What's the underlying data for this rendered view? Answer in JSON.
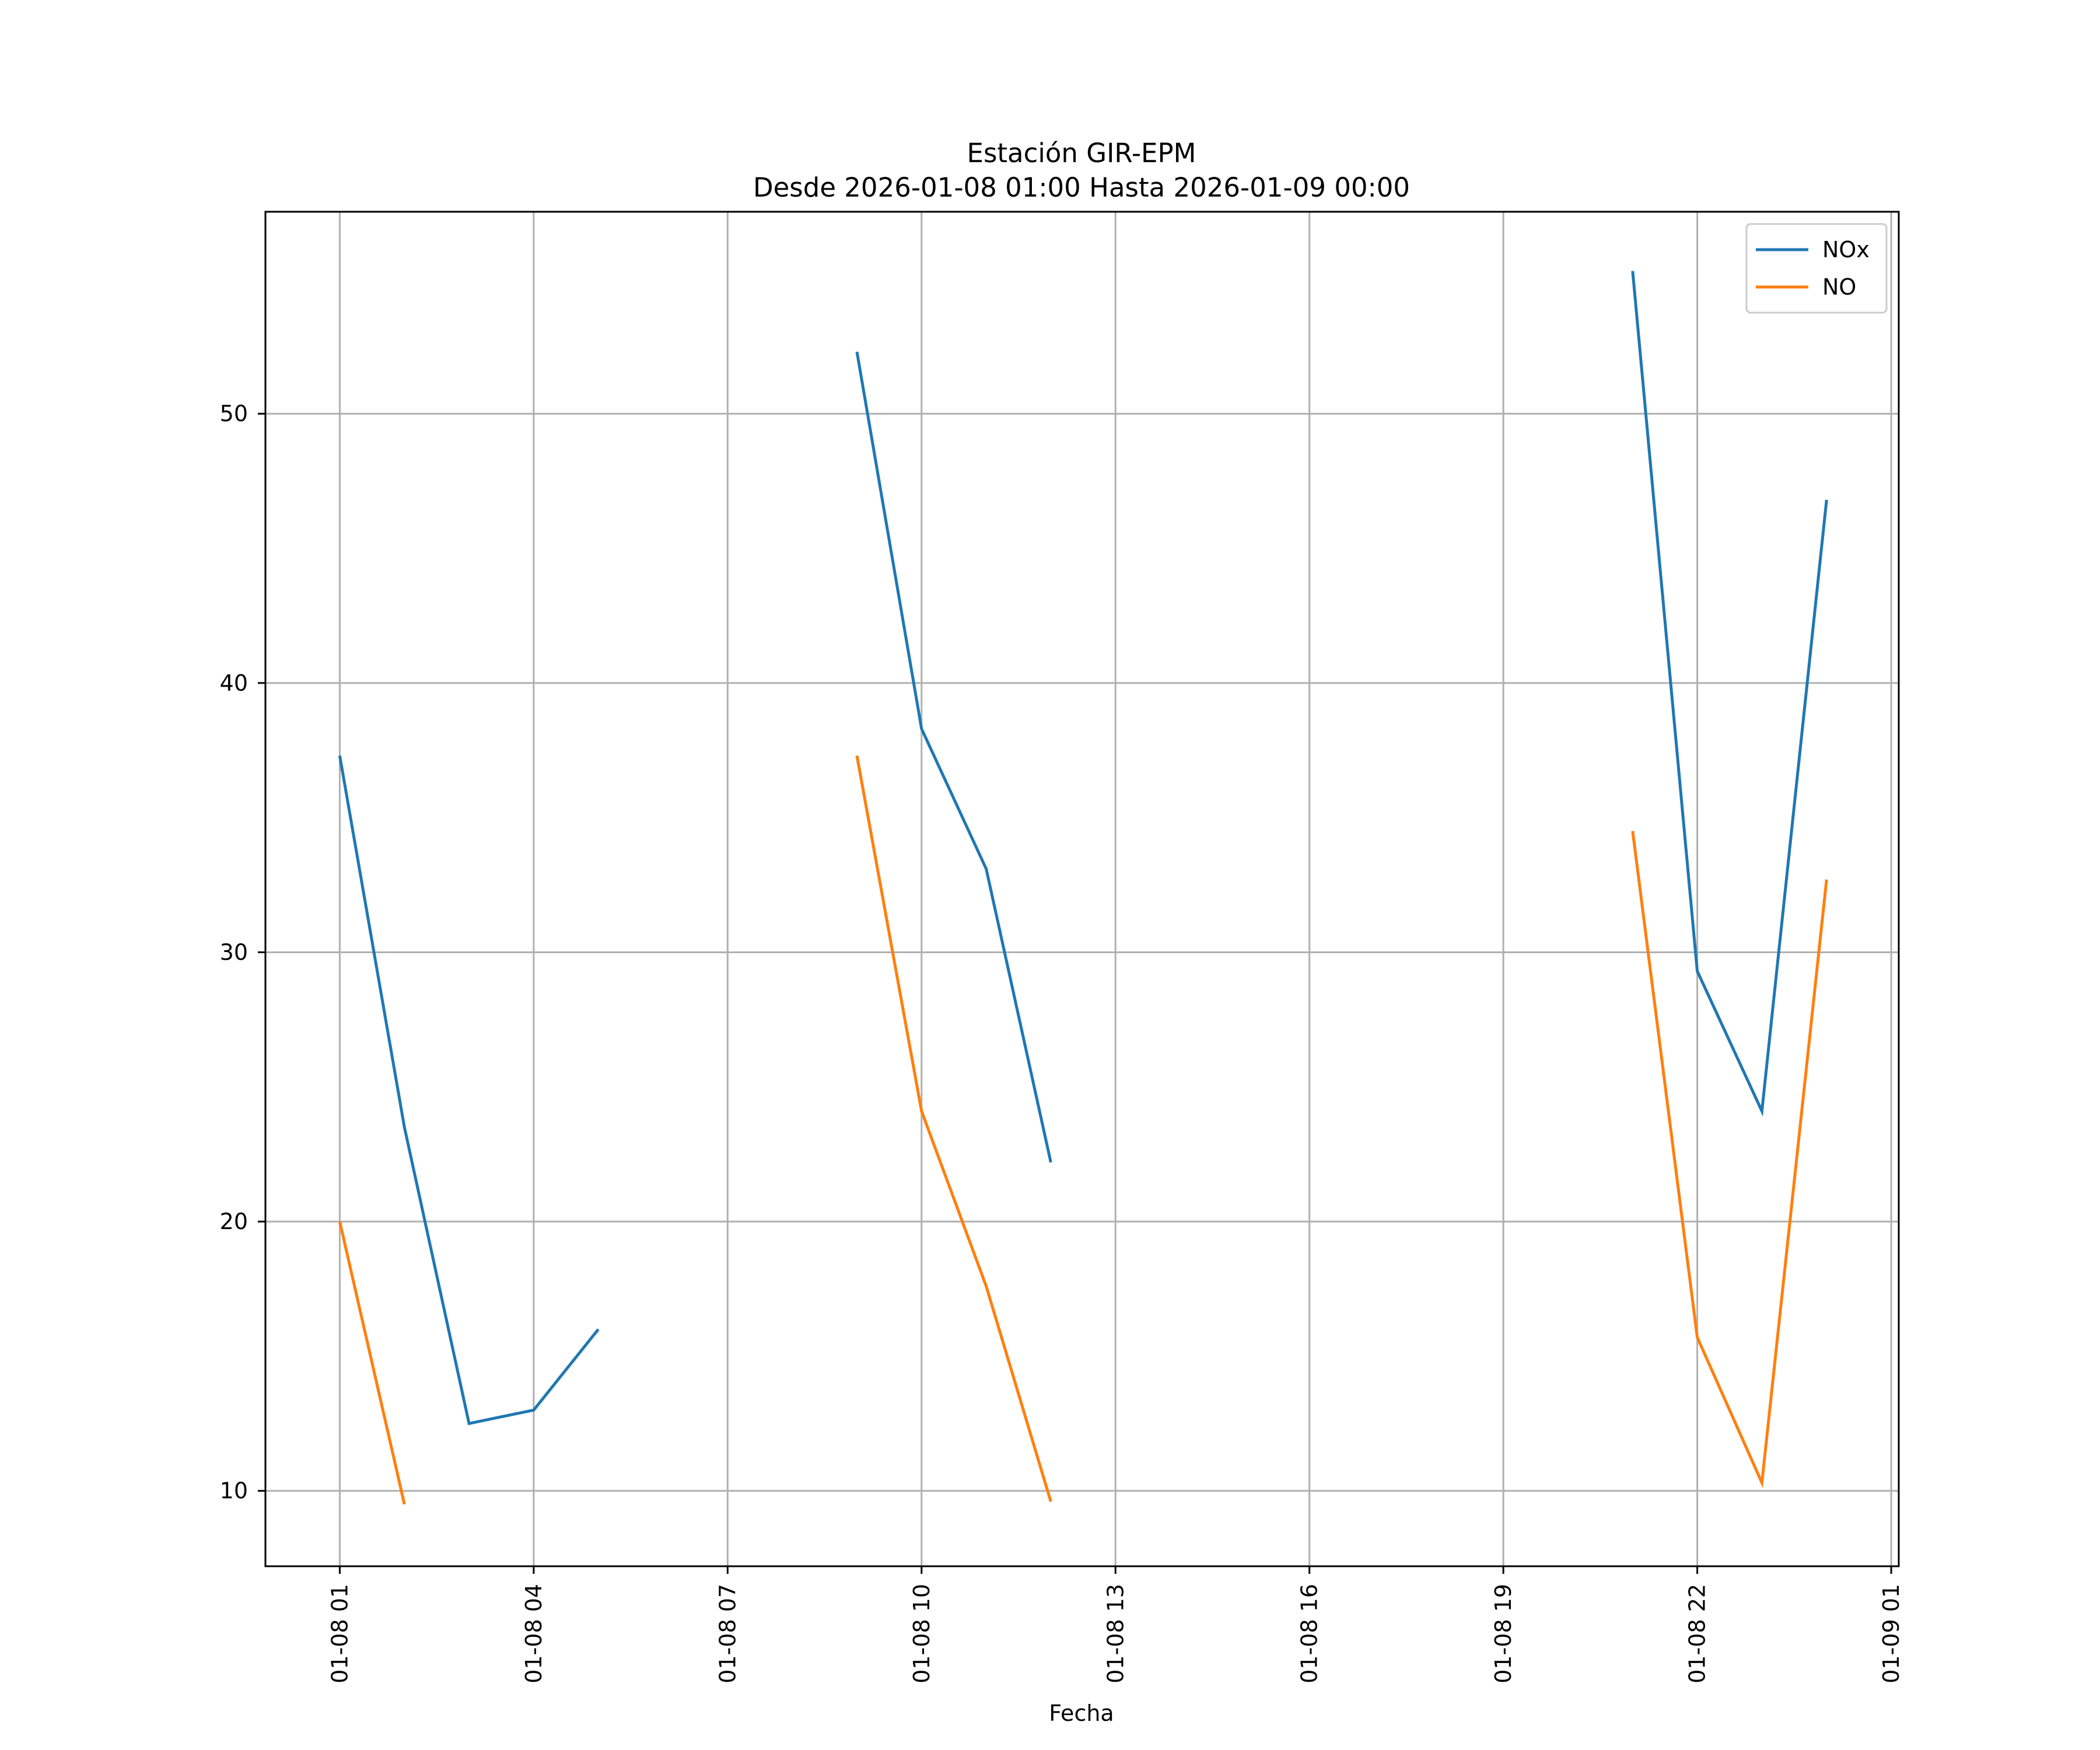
{
  "chart_data": {
    "type": "line",
    "title": "Estación GIR-EPM",
    "subtitle": "Desde 2026-01-08 01:00 Hasta 2026-01-09 00:00",
    "xlabel": "Fecha",
    "ylabel": "",
    "x": [
      "2026-01-08 01:00",
      "2026-01-08 02:00",
      "2026-01-08 03:00",
      "2026-01-08 04:00",
      "2026-01-08 05:00",
      "2026-01-08 06:00",
      "2026-01-08 07:00",
      "2026-01-08 08:00",
      "2026-01-08 09:00",
      "2026-01-08 10:00",
      "2026-01-08 11:00",
      "2026-01-08 12:00",
      "2026-01-08 13:00",
      "2026-01-08 14:00",
      "2026-01-08 15:00",
      "2026-01-08 16:00",
      "2026-01-08 17:00",
      "2026-01-08 18:00",
      "2026-01-08 19:00",
      "2026-01-08 20:00",
      "2026-01-08 21:00",
      "2026-01-08 22:00",
      "2026-01-08 23:00",
      "2026-01-09 00:00"
    ],
    "series": [
      {
        "name": "NOx",
        "color": "#1f77b4",
        "values": [
          37.3,
          23.5,
          12.5,
          13.0,
          16.0,
          null,
          null,
          null,
          52.3,
          38.3,
          33.1,
          22.2,
          null,
          null,
          null,
          null,
          null,
          null,
          null,
          null,
          55.3,
          29.3,
          24.1,
          46.8
        ]
      },
      {
        "name": "NO",
        "color": "#ff7f0e",
        "values": [
          20.0,
          9.5,
          null,
          null,
          null,
          null,
          null,
          null,
          37.3,
          24.1,
          17.6,
          9.6,
          null,
          null,
          null,
          null,
          null,
          null,
          null,
          null,
          34.5,
          15.7,
          10.3,
          32.7
        ]
      }
    ],
    "xticks": [
      {
        "value": "2026-01-08 01:00",
        "label": "01-08 01"
      },
      {
        "value": "2026-01-08 04:00",
        "label": "01-08 04"
      },
      {
        "value": "2026-01-08 07:00",
        "label": "01-08 07"
      },
      {
        "value": "2026-01-08 10:00",
        "label": "01-08 10"
      },
      {
        "value": "2026-01-08 13:00",
        "label": "01-08 13"
      },
      {
        "value": "2026-01-08 16:00",
        "label": "01-08 16"
      },
      {
        "value": "2026-01-08 19:00",
        "label": "01-08 19"
      },
      {
        "value": "2026-01-08 22:00",
        "label": "01-08 22"
      },
      {
        "value": "2026-01-09 01:00",
        "label": "01-09 01"
      }
    ],
    "yticks": [
      10,
      20,
      30,
      40,
      50
    ],
    "xlim": [
      "2026-01-07 23:51",
      "2026-01-09 01:07"
    ],
    "ylim": [
      7.2,
      57.5
    ],
    "grid": true,
    "legend": "top-right"
  }
}
